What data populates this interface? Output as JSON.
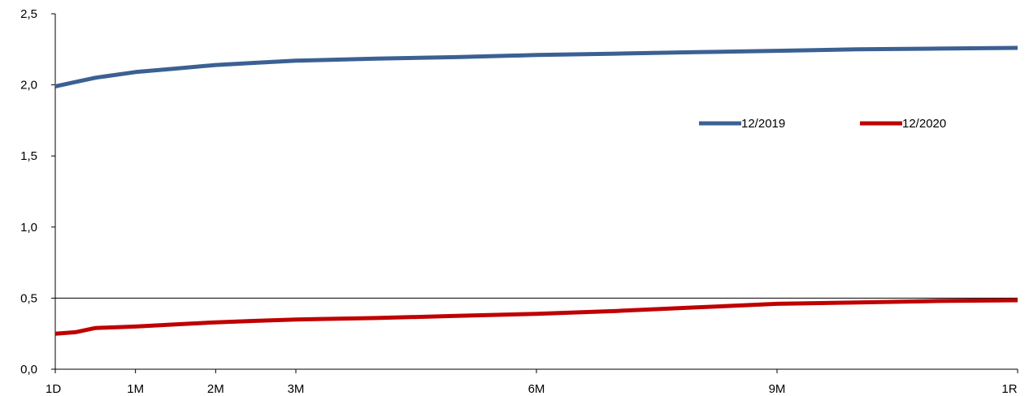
{
  "chart_data": {
    "type": "line",
    "title": "",
    "xlabel": "",
    "ylabel": "",
    "ylim": [
      0,
      2.5
    ],
    "y_ticks": [
      "0,0",
      "0,5",
      "1,0",
      "1,5",
      "2,0",
      "2,5"
    ],
    "y_tick_values": [
      0,
      0.5,
      1.0,
      1.5,
      2.0,
      2.5
    ],
    "reference_line": 0.5,
    "x_ticks": [
      "1D",
      "1M",
      "2M",
      "3M",
      "6M",
      "9M",
      "1R"
    ],
    "x_tick_months": [
      0,
      1,
      2,
      3,
      6,
      9,
      12
    ],
    "xlim": [
      0,
      12
    ],
    "legend_position": "right",
    "series": [
      {
        "name": "12/2019",
        "color": "#3B6093",
        "x": [
          0,
          0.25,
          0.5,
          1,
          1.5,
          2,
          2.5,
          3,
          4,
          5,
          6,
          7,
          8,
          9,
          10,
          11,
          12
        ],
        "values": [
          1.99,
          2.02,
          2.05,
          2.09,
          2.115,
          2.14,
          2.155,
          2.17,
          2.185,
          2.195,
          2.21,
          2.22,
          2.23,
          2.24,
          2.25,
          2.255,
          2.26
        ]
      },
      {
        "name": "12/2020",
        "color": "#C00000",
        "x": [
          0,
          0.25,
          0.5,
          1,
          1.5,
          2,
          2.5,
          3,
          4,
          5,
          6,
          7,
          8,
          9,
          10,
          11,
          12
        ],
        "values": [
          0.25,
          0.26,
          0.29,
          0.3,
          0.315,
          0.33,
          0.34,
          0.35,
          0.36,
          0.375,
          0.39,
          0.41,
          0.435,
          0.46,
          0.47,
          0.48,
          0.485
        ]
      }
    ]
  }
}
